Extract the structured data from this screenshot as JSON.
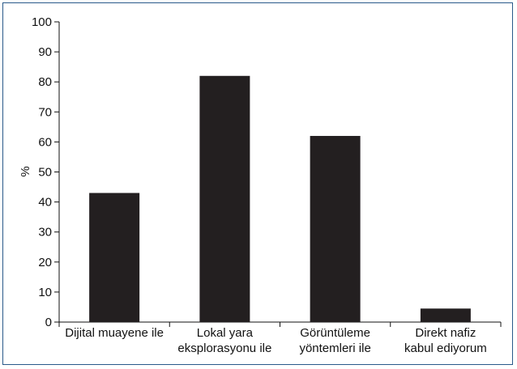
{
  "chart_data": {
    "type": "bar",
    "categories": [
      [
        "Dijital muayene ile"
      ],
      [
        "Lokal yara",
        "eksplorasyonu ile"
      ],
      [
        "Görüntüleme",
        "yöntemleri ile"
      ],
      [
        "Direkt nafiz",
        "kabul ediyorum"
      ]
    ],
    "values": [
      43,
      82,
      62,
      4.5
    ],
    "title": "",
    "xlabel": "",
    "ylabel": "%",
    "ylim": [
      0,
      100
    ],
    "yticks": [
      0,
      10,
      20,
      30,
      40,
      50,
      60,
      70,
      80,
      90,
      100
    ],
    "grid": false,
    "bar_color": "#231f20",
    "frame_color": "#2a5a8a"
  }
}
